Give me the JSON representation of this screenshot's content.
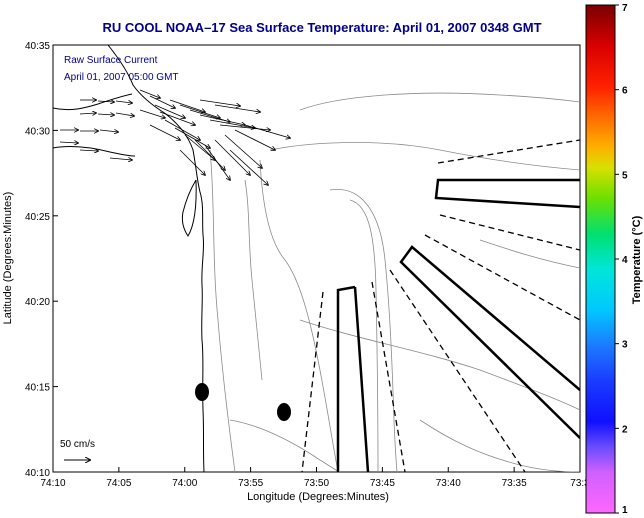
{
  "title": "RU COOL  NOAA–17  Sea Surface Temperature:  April 01, 2007 0348 GMT",
  "overlay": {
    "line1": "Raw Surface Current",
    "line2": "April 01, 2007 05:00 GMT"
  },
  "axes": {
    "xlabel": "Longitude (Degrees:Minutes)",
    "ylabel": "Latitude (Degrees:Minutes)",
    "x_ticks": [
      "74:10",
      "74:05",
      "74:00",
      "73:55",
      "73:50",
      "73:45",
      "73:40",
      "73:35",
      "73:3"
    ],
    "y_ticks": [
      "40:35",
      "40:30",
      "40:25",
      "40:20",
      "40:15",
      "40:10"
    ]
  },
  "scale": {
    "label": "50 cm/s"
  },
  "colorbar": {
    "label": "Temperature (°C)",
    "ticks": [
      "7",
      "6",
      "5",
      "4",
      "3",
      "2",
      "1"
    ],
    "min": 1,
    "max": 7
  },
  "colors": {
    "title": "#00008b",
    "land": "#ffffff",
    "water": "#ffffff",
    "contour": "#8a8a8a",
    "arrows": "#000000"
  }
}
